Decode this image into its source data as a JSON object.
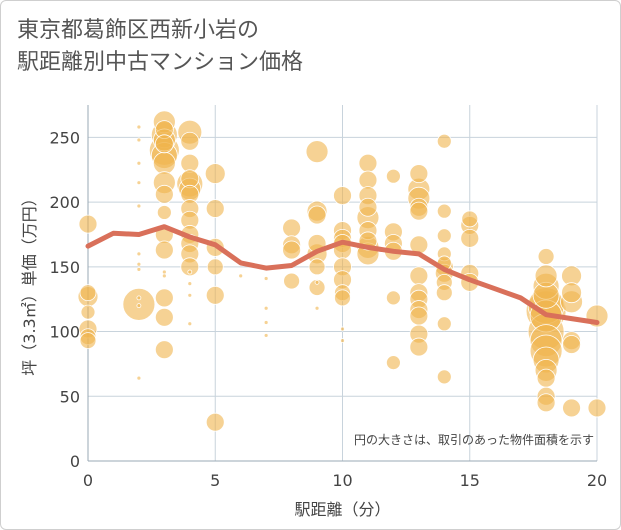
{
  "title_lines": [
    "東京都葛飾区西新小岩の",
    "駅距離別中古マンション価格"
  ],
  "chart_data": {
    "type": "scatter",
    "title": "東京都葛飾区西新小岩の駅距離別中古マンション価格",
    "xlabel": "駅距離（分）",
    "ylabel": "坪（3.3㎡）単価（万円）",
    "xlim": [
      0,
      20
    ],
    "ylim": [
      0,
      275
    ],
    "x_ticks": [
      0,
      5,
      10,
      15,
      20
    ],
    "y_ticks": [
      0,
      50,
      100,
      150,
      200,
      250
    ],
    "grid": true,
    "annotation": "円の大きさは、取引のあった物件面積を示す",
    "colors": {
      "bubble": "#f0b44c",
      "trend_line": "#d9705a",
      "grid": "#c8d3dc",
      "text": "#444444"
    },
    "bubble_series": {
      "points": [
        [
          0,
          183,
          9
        ],
        [
          0,
          130,
          8
        ],
        [
          0,
          127,
          10
        ],
        [
          0,
          115,
          7
        ],
        [
          0,
          102,
          9
        ],
        [
          0,
          96,
          8
        ],
        [
          0,
          93,
          8
        ],
        [
          2,
          258,
          2
        ],
        [
          2,
          248,
          2
        ],
        [
          2,
          230,
          2
        ],
        [
          2,
          215,
          2
        ],
        [
          2,
          197,
          2
        ],
        [
          2,
          160,
          2
        ],
        [
          2,
          152,
          2
        ],
        [
          2,
          148,
          2
        ],
        [
          2,
          126,
          2
        ],
        [
          2,
          120,
          2
        ],
        [
          2,
          64,
          2
        ],
        [
          2,
          121,
          16
        ],
        [
          3,
          262,
          11
        ],
        [
          3,
          256,
          9
        ],
        [
          3,
          252,
          13
        ],
        [
          3,
          248,
          11
        ],
        [
          3,
          245,
          9
        ],
        [
          3,
          240,
          15
        ],
        [
          3,
          236,
          13
        ],
        [
          3,
          230,
          11
        ],
        [
          3,
          215,
          11
        ],
        [
          3,
          206,
          9
        ],
        [
          3,
          192,
          7
        ],
        [
          3,
          175,
          9
        ],
        [
          3,
          163,
          9
        ],
        [
          3,
          146,
          2
        ],
        [
          3,
          143,
          2
        ],
        [
          3,
          126,
          9
        ],
        [
          3,
          111,
          9
        ],
        [
          3,
          86,
          9
        ],
        [
          4,
          254,
          12
        ],
        [
          4,
          247,
          9
        ],
        [
          4,
          230,
          9
        ],
        [
          4,
          218,
          9
        ],
        [
          4,
          214,
          13
        ],
        [
          4,
          210,
          11
        ],
        [
          4,
          206,
          9
        ],
        [
          4,
          195,
          9
        ],
        [
          4,
          186,
          9
        ],
        [
          4,
          175,
          9
        ],
        [
          4,
          168,
          9
        ],
        [
          4,
          160,
          9
        ],
        [
          4,
          150,
          9
        ],
        [
          4,
          146,
          2
        ],
        [
          4,
          137,
          2
        ],
        [
          4,
          128,
          2
        ],
        [
          4,
          106,
          2
        ],
        [
          5,
          222,
          10
        ],
        [
          5,
          195,
          9
        ],
        [
          5,
          165,
          9
        ],
        [
          5,
          150,
          8
        ],
        [
          5,
          128,
          9
        ],
        [
          5,
          30,
          9
        ],
        [
          6,
          143,
          2
        ],
        [
          7,
          141,
          2
        ],
        [
          7,
          118,
          2
        ],
        [
          7,
          107,
          2
        ],
        [
          7,
          97,
          2
        ],
        [
          8,
          180,
          9
        ],
        [
          8,
          167,
          9
        ],
        [
          8,
          163,
          9
        ],
        [
          8,
          139,
          8
        ],
        [
          9,
          239,
          11
        ],
        [
          9,
          193,
          10
        ],
        [
          9,
          190,
          9
        ],
        [
          9,
          168,
          9
        ],
        [
          9,
          160,
          10
        ],
        [
          9,
          150,
          8
        ],
        [
          9,
          138,
          2
        ],
        [
          9,
          134,
          8
        ],
        [
          9,
          118,
          2
        ],
        [
          10,
          205,
          9
        ],
        [
          10,
          178,
          9
        ],
        [
          10,
          172,
          9
        ],
        [
          10,
          168,
          9
        ],
        [
          10,
          163,
          9
        ],
        [
          10,
          150,
          9
        ],
        [
          10,
          140,
          9
        ],
        [
          10,
          130,
          8
        ],
        [
          10,
          126,
          8
        ],
        [
          10,
          102,
          2
        ],
        [
          10,
          93,
          2
        ],
        [
          11,
          230,
          9
        ],
        [
          11,
          217,
          9
        ],
        [
          11,
          205,
          9
        ],
        [
          11,
          196,
          9
        ],
        [
          11,
          188,
          11
        ],
        [
          11,
          178,
          9
        ],
        [
          11,
          170,
          9
        ],
        [
          11,
          165,
          11
        ],
        [
          11,
          160,
          11
        ],
        [
          12,
          220,
          7
        ],
        [
          12,
          177,
          9
        ],
        [
          12,
          168,
          9
        ],
        [
          12,
          162,
          9
        ],
        [
          12,
          126,
          7
        ],
        [
          12,
          76,
          7
        ],
        [
          13,
          222,
          9
        ],
        [
          13,
          210,
          11
        ],
        [
          13,
          203,
          11
        ],
        [
          13,
          196,
          9
        ],
        [
          13,
          193,
          9
        ],
        [
          13,
          167,
          9
        ],
        [
          13,
          143,
          9
        ],
        [
          13,
          130,
          9
        ],
        [
          13,
          125,
          9
        ],
        [
          13,
          117,
          9
        ],
        [
          13,
          112,
          9
        ],
        [
          13,
          98,
          9
        ],
        [
          13,
          88,
          9
        ],
        [
          14,
          247,
          7
        ],
        [
          14,
          193,
          7
        ],
        [
          14,
          174,
          7
        ],
        [
          14,
          160,
          7
        ],
        [
          14,
          153,
          7
        ],
        [
          14,
          150,
          9
        ],
        [
          14,
          145,
          9
        ],
        [
          14,
          138,
          8
        ],
        [
          14,
          130,
          8
        ],
        [
          14,
          106,
          7
        ],
        [
          14,
          65,
          7
        ],
        [
          15,
          187,
          8
        ],
        [
          15,
          182,
          9
        ],
        [
          15,
          172,
          9
        ],
        [
          15,
          145,
          9
        ],
        [
          15,
          138,
          9
        ],
        [
          18,
          158,
          8
        ],
        [
          18,
          143,
          11
        ],
        [
          18,
          135,
          13
        ],
        [
          18,
          128,
          13
        ],
        [
          18,
          120,
          18
        ],
        [
          18,
          116,
          20
        ],
        [
          18,
          112,
          16
        ],
        [
          18,
          100,
          18
        ],
        [
          18,
          93,
          16
        ],
        [
          18,
          85,
          16
        ],
        [
          18,
          78,
          13
        ],
        [
          18,
          70,
          11
        ],
        [
          18,
          64,
          9
        ],
        [
          18,
          50,
          9
        ],
        [
          18,
          45,
          9
        ],
        [
          19,
          143,
          10
        ],
        [
          19,
          130,
          10
        ],
        [
          19,
          123,
          11
        ],
        [
          19,
          93,
          9
        ],
        [
          19,
          90,
          9
        ],
        [
          19,
          41,
          9
        ],
        [
          20,
          112,
          11
        ],
        [
          20,
          41,
          9
        ]
      ]
    },
    "trend_line": {
      "x": [
        0,
        1,
        2,
        3,
        4,
        5,
        6,
        7,
        8,
        9,
        10,
        11,
        12,
        13,
        14,
        15,
        16,
        17,
        18,
        19,
        20
      ],
      "y": [
        166,
        176,
        175,
        181,
        173,
        167,
        153,
        149,
        151,
        162,
        169,
        165,
        162,
        160,
        148,
        140,
        133,
        126,
        113,
        110,
        107
      ]
    }
  }
}
